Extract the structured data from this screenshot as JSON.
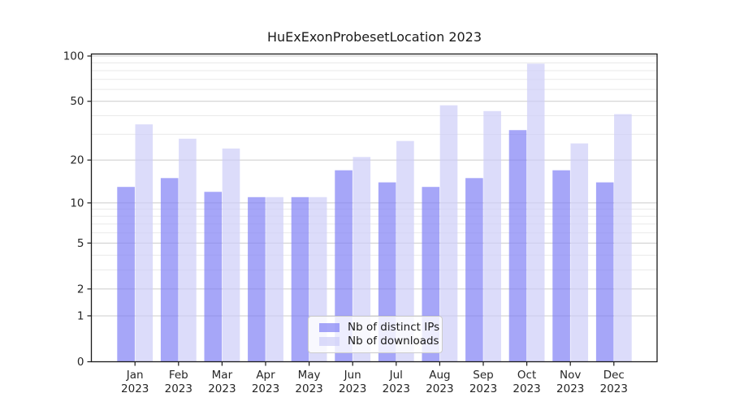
{
  "chart_data": {
    "type": "bar",
    "title": "HuExExonProbesetLocation 2023",
    "categories": [
      "Jan",
      "Feb",
      "Mar",
      "Apr",
      "May",
      "Jun",
      "Jul",
      "Aug",
      "Sep",
      "Oct",
      "Nov",
      "Dec"
    ],
    "category_year": "2023",
    "series": [
      {
        "name": "Nb of distinct IPs",
        "color": "#8080f5",
        "opacity": 0.7,
        "values": [
          13,
          15,
          12,
          11,
          11,
          17,
          14,
          13,
          15,
          32,
          17,
          14
        ]
      },
      {
        "name": "Nb of downloads",
        "color": "#cdcdf8",
        "opacity": 0.7,
        "values": [
          35,
          28,
          24,
          11,
          11,
          21,
          27,
          47,
          43,
          89,
          26,
          41
        ]
      }
    ],
    "yscale": "log1p",
    "ylim": [
      0,
      100
    ],
    "yticks_major": [
      0,
      1,
      2,
      5,
      10,
      20,
      50,
      100
    ],
    "yticks_minor": [
      3,
      4,
      6,
      7,
      8,
      9,
      30,
      40,
      60,
      70,
      80,
      90
    ],
    "grid": true,
    "legend_position": "lower center"
  },
  "colors": {
    "axis": "#1a1a1a",
    "tick_label": "#262626",
    "grid_major": "#cccccc",
    "grid_minor": "#e9e9e9",
    "legend_border": "#cccccc"
  }
}
